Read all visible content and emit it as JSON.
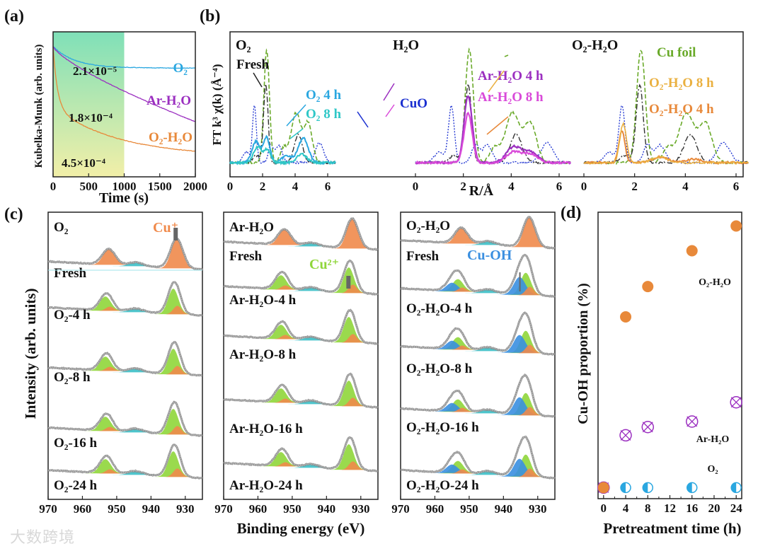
{
  "colors": {
    "o2": "#2aa7e0",
    "arh2o": "#9b2fc0",
    "o2h2o": "#e8893a",
    "cufoil": "#6aaa2a",
    "fresh": "#333333",
    "cuo": "#1a2fd0",
    "arh2o8": "#d94ad9",
    "o2h2o8": "#eab040",
    "cu2": "#8fd63a",
    "cuplus": "#f08a4b",
    "cuoh": "#3a8fe0",
    "sat": "#3bbfc7"
  },
  "watermark": "大数跨境",
  "chart_data": [
    {
      "panel": "(a)",
      "type": "line",
      "xlabel": "Time (s)",
      "ylabel": "Kubelka-Munk (arb. units)",
      "xlim": [
        0,
        2000
      ],
      "xticks": [
        "0",
        "500",
        "1000",
        "1500",
        "2000"
      ],
      "shaded_region": [
        0,
        1000
      ],
      "series": [
        {
          "name": "O₂",
          "rate": "2.1×10⁻⁵",
          "start": 0.9,
          "end": 0.75
        },
        {
          "name": "Ar-H₂O",
          "rate": "1.8×10⁻⁴",
          "start": 0.9,
          "end": 0.38
        },
        {
          "name": "O₂-H₂O",
          "rate": "4.5×10⁻⁴",
          "start": 0.9,
          "end": 0.14
        }
      ]
    },
    {
      "panel": "(b)",
      "type": "line",
      "xlabel": "R/Å",
      "ylabel": "FT k³ χ(k) (Å⁻⁴)",
      "xlim": [
        0,
        6.5
      ],
      "xticks": [
        "0",
        "2",
        "4",
        "6"
      ],
      "subpanels": [
        {
          "title": "O₂",
          "labels": [
            "Fresh",
            "O₂ 4 h",
            "O₂ 8 h"
          ]
        },
        {
          "title": "H₂O",
          "labels": [
            "CuO",
            "Ar-H₂O 4 h",
            "Ar-H₂O 8 h"
          ]
        },
        {
          "title": "O₂-H₂O",
          "labels": [
            "Cu foil",
            "O₂-H₂O 8 h",
            "O₂-H₂O 4 h"
          ]
        }
      ]
    },
    {
      "panel": "(c)",
      "type": "line",
      "xlabel": "Binding energy (eV)",
      "ylabel": "Intensity (arb. units)",
      "xlim": [
        970,
        925
      ],
      "xticks": [
        "970",
        "960",
        "950",
        "940",
        "930"
      ],
      "subpanels": [
        {
          "labels": [
            "O₂",
            "Fresh",
            "O₂-4 h",
            "O₂-8 h",
            "O₂-16 h",
            "O₂-24 h"
          ],
          "annotation": "Cu⁺"
        },
        {
          "labels": [
            "Ar-H₂O",
            "Fresh",
            "Ar-H₂O-4 h",
            "Ar-H₂O-8 h",
            "Ar-H₂O-16 h",
            "Ar-H₂O-24 h"
          ],
          "annotation": "Cu²⁺"
        },
        {
          "labels": [
            "O₂-H₂O",
            "Fresh",
            "O₂-H₂O-4 h",
            "O₂-H₂O-8 h",
            "O₂-H₂O-16 h",
            "O₂-H₂O-24 h"
          ],
          "annotation": "Cu-OH"
        }
      ]
    },
    {
      "panel": "(d)",
      "type": "scatter",
      "xlabel": "Pretreatment time (h)",
      "ylabel": "Cu-OH proportion (%)",
      "xlim": [
        -1,
        25
      ],
      "ylim": [
        -4,
        100
      ],
      "xticks": [
        "0",
        "4",
        "8",
        "12",
        "16",
        "20",
        "24"
      ],
      "x": [
        0,
        4,
        8,
        16,
        24
      ],
      "series": [
        {
          "name": "O₂-H₂O",
          "values": [
            0,
            62,
            73,
            86,
            95
          ]
        },
        {
          "name": "Ar-H₂O",
          "values": [
            0,
            19,
            22,
            24,
            31
          ]
        },
        {
          "name": "O₂",
          "values": [
            0,
            0,
            0,
            0,
            0
          ]
        }
      ]
    }
  ]
}
